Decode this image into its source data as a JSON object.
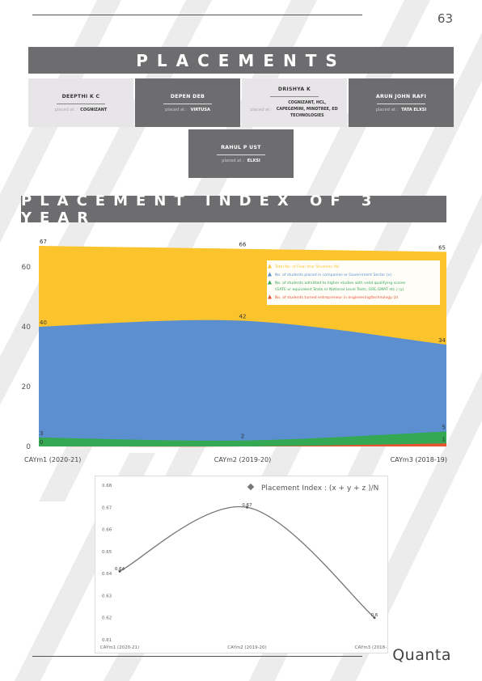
{
  "page_number": "63",
  "placements_title": "PLACEMENTS",
  "placements": [
    {
      "name": "DEEPTHI K C",
      "prefix": "placed at :",
      "company": "COGNIZANT"
    },
    {
      "name": "DEPEN DEB",
      "prefix": "placed at :",
      "company": "VIRTUSA"
    },
    {
      "name": "DRISHYA K",
      "prefix": "placed at :",
      "company": "COGNIZANT, HCL, CAPEGEMINI, MINDTREE, ED TECHNOLOGIES"
    },
    {
      "name": "ARUN JOHN RAFI",
      "prefix": "placed at :",
      "company": "TATA ELXSI"
    },
    {
      "name": "RAHUL P UST",
      "prefix": "placed at :",
      "company": "ELXSI"
    }
  ],
  "index_title": "PLACEMENT INDEX OF 3 YEAR",
  "brand": "Quanta",
  "colors": {
    "banner": "#6d6d70",
    "yellow": "#fbc42d",
    "blue": "#5b8fd0",
    "green": "#34a853",
    "red": "#e8532f"
  },
  "chart_data": [
    {
      "type": "area",
      "categories": [
        "CAYm1 (2020-21)",
        "CAYm2 (2019-20)",
        "CAYm3 (2018-19)"
      ],
      "ylim": [
        0,
        67
      ],
      "yticks": [
        0,
        20,
        40,
        60
      ],
      "series": [
        {
          "name": "Total No. of Final Year Students (N)",
          "values": [
            67,
            66,
            65
          ],
          "labels": [
            "67",
            "66",
            "65"
          ],
          "color": "#fbc42d"
        },
        {
          "name": "No. of students placed in companies or Government Sector (x)",
          "values": [
            40,
            42,
            34
          ],
          "labels": [
            "40",
            "42",
            "34"
          ],
          "color": "#5b8fd0"
        },
        {
          "name": "No. of students admitted to higher studies with valid qualifying scores (GATE or equivalent State or National Level Tests, GRE,GMAT etc.) (y)",
          "values": [
            3,
            2,
            5
          ],
          "labels": [
            "3",
            "2",
            "5"
          ],
          "color": "#34a853"
        },
        {
          "name": "No. of students turned entrepreneur in engineering/technology (z)",
          "values": [
            0,
            0,
            1
          ],
          "labels": [
            "0",
            "",
            "1"
          ],
          "color": "#e8532f"
        }
      ],
      "legend": "top-right"
    },
    {
      "type": "line",
      "title": "Placement Index : (x + y + z )/N",
      "categories": [
        "CAYm1 (2020-21)",
        "CAYm2 (2019-20)",
        "CAYm3 (2018-19)"
      ],
      "values": [
        0.641,
        0.67,
        0.62
      ],
      "point_labels": [
        "0.64",
        "0.67",
        "0.6"
      ],
      "ylim": [
        0.61,
        0.68
      ],
      "yticks": [
        "0.61",
        "0.62",
        "0.63",
        "0.64",
        "0.65",
        "0.66",
        "0.67",
        "0.68"
      ]
    }
  ]
}
